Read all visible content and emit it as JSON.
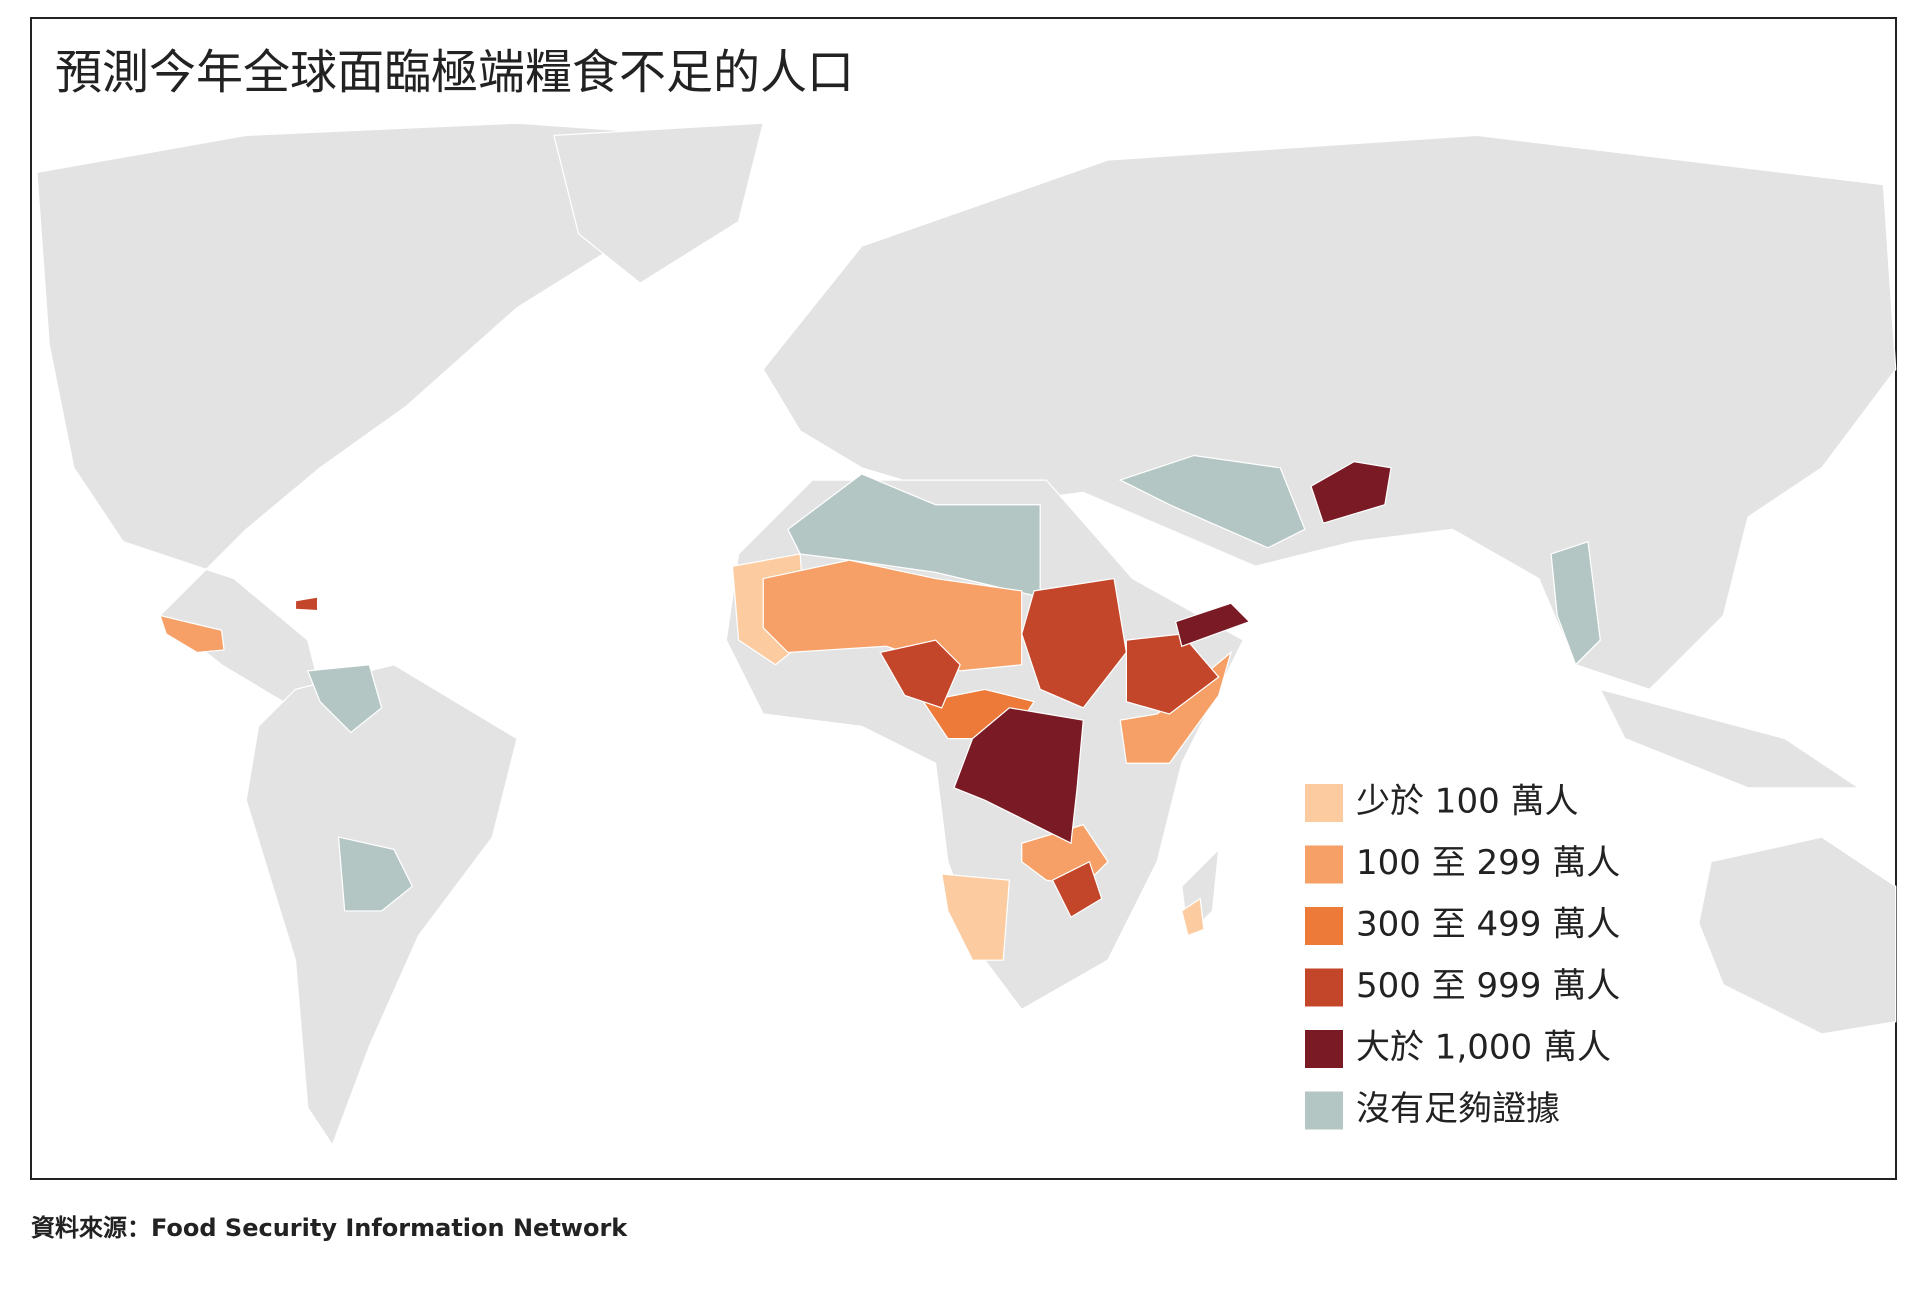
{
  "title": "預測今年全球面臨極端糧食不足的人口",
  "legend": [
    {
      "label": "少於 100 萬人",
      "color": "#fccca0"
    },
    {
      "label": "100 至 299 萬人",
      "color": "#f6a067"
    },
    {
      "label": "300 至 499 萬人",
      "color": "#ee7a3a"
    },
    {
      "label": "500 至 999 萬人",
      "color": "#c4462a"
    },
    {
      "label": "大於 1,000 萬人",
      "color": "#7a1a24"
    },
    {
      "label": "沒有足夠證據",
      "color": "#b4c6c4"
    }
  ],
  "source": "資料來源：Food Security Information Network"
}
